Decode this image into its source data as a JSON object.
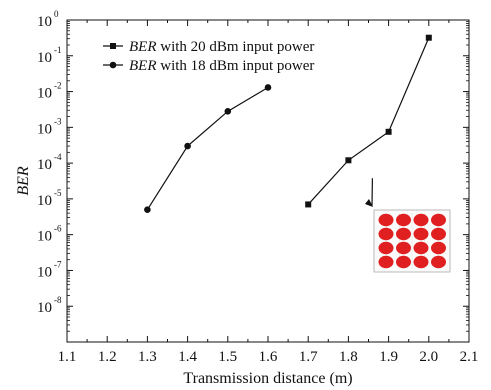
{
  "chart_data": {
    "type": "scatter",
    "xlabel": "Transmission distance (m)",
    "ylabel": "BER",
    "xlim": [
      1.1,
      2.1
    ],
    "ylim_log10": [
      -9,
      0
    ],
    "y_scale": "log",
    "grid": false,
    "legend_position": "top-left",
    "x_ticks": [
      "1.1",
      "1.2",
      "1.3",
      "1.4",
      "1.5",
      "1.6",
      "1.7",
      "1.8",
      "1.9",
      "2.0",
      "2.1"
    ],
    "y_tick_base": "10",
    "y_tick_exponents": [
      "-8",
      "-7",
      "-6",
      "-5",
      "-4",
      "-3",
      "-2",
      "-1",
      "0"
    ],
    "series": [
      {
        "name_prefix": "BER",
        "name_suffix": " with 20 dBm input power",
        "marker": "square",
        "color": "#111111",
        "x": [
          1.7,
          1.8,
          1.9,
          2.0
        ],
        "y": [
          7e-06,
          0.00012,
          0.00075,
          0.32
        ]
      },
      {
        "name_prefix": "BER",
        "name_suffix": " with 18 dBm input power",
        "marker": "circle",
        "color": "#111111",
        "x": [
          1.3,
          1.4,
          1.5,
          1.6
        ],
        "y": [
          5e-06,
          0.0003,
          0.0028,
          0.013
        ]
      }
    ],
    "inset": {
      "type": "constellation",
      "grid": "4x4",
      "point_color": "#e02020",
      "points_to_x": 1.8
    }
  }
}
